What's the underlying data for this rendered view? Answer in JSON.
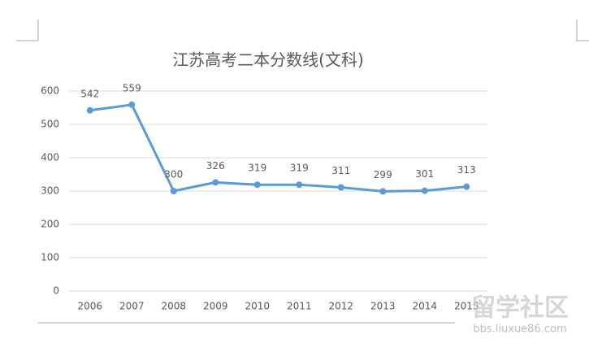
{
  "chart_data": {
    "type": "line",
    "title": "江苏高考二本分数线(文科)",
    "categories": [
      "2006",
      "2007",
      "2008",
      "2009",
      "2010",
      "2011",
      "2012",
      "2013",
      "2014",
      "2015"
    ],
    "values": [
      542,
      559,
      300,
      326,
      319,
      319,
      311,
      299,
      301,
      313
    ],
    "color": "#5b9bd5",
    "ylim": [
      0,
      600
    ],
    "yticks": [
      0,
      100,
      200,
      300,
      400,
      500,
      600
    ],
    "grid": true,
    "data_labels": true
  },
  "watermark": {
    "logo": "留学社区",
    "url": "bbs.liuxue86.com"
  }
}
